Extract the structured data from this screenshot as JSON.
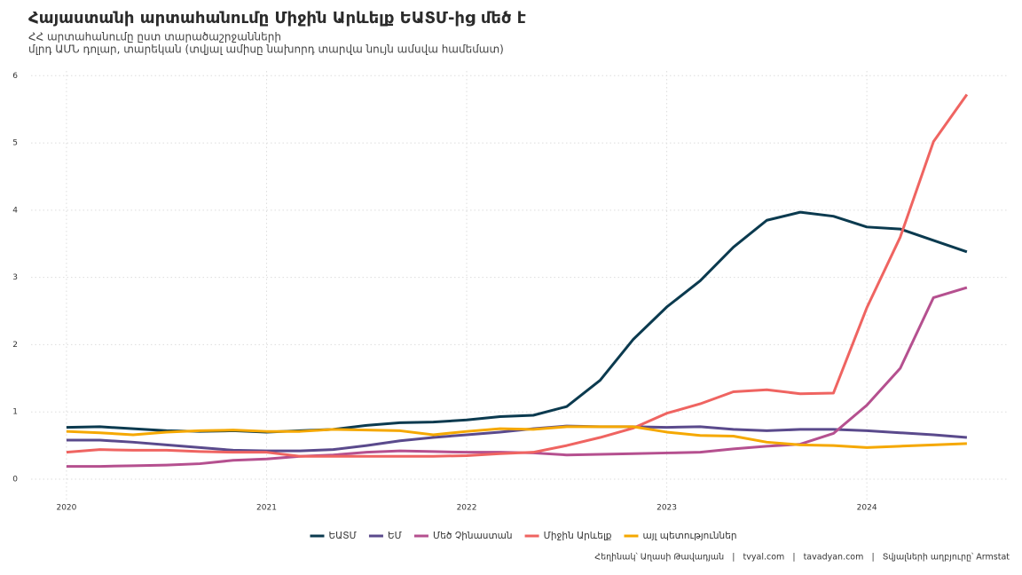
{
  "chart_data": {
    "type": "line",
    "title": "Հայաստանի արտահանումը Միջին Արևելք ԵԱՏՄ-ից մեծ է",
    "subtitle": [
      "ՀՀ արտահանումը ըստ տարածաշրջանների",
      "մլրդ ԱՄՆ դոլար, տարեկան (տվյալ ամիսը նախորդ տարվա նույն ամսվա համեմատ)"
    ],
    "caption": "Հեղինակ՝ Աղասի Թավադյան   |   tvyal.com   |   tavadyan.com   |   Տվյալների աղբյուրը՝ Armstat",
    "x": [
      2020,
      2020.167,
      2020.333,
      2020.5,
      2020.667,
      2020.833,
      2021,
      2021.167,
      2021.333,
      2021.5,
      2021.667,
      2021.833,
      2022,
      2022.167,
      2022.333,
      2022.5,
      2022.667,
      2022.833,
      2023,
      2023.167,
      2023.333,
      2023.5,
      2023.667,
      2023.833,
      2024,
      2024.167,
      2024.333,
      2024.5
    ],
    "series": [
      {
        "name": "ԵԱՏՄ",
        "color": "#0b3a4f",
        "values": [
          0.77,
          0.78,
          0.75,
          0.72,
          0.71,
          0.72,
          0.7,
          0.72,
          0.74,
          0.8,
          0.84,
          0.85,
          0.88,
          0.93,
          0.95,
          1.08,
          1.47,
          2.08,
          2.56,
          2.95,
          3.45,
          3.85,
          3.97,
          3.91,
          3.75,
          3.72,
          3.55,
          3.38
        ]
      },
      {
        "name": "ԵՄ",
        "color": "#5a4a8c",
        "values": [
          0.58,
          0.58,
          0.55,
          0.51,
          0.47,
          0.43,
          0.42,
          0.42,
          0.44,
          0.5,
          0.57,
          0.62,
          0.66,
          0.7,
          0.75,
          0.79,
          0.78,
          0.78,
          0.77,
          0.78,
          0.74,
          0.72,
          0.74,
          0.74,
          0.72,
          0.69,
          0.66,
          0.62
        ]
      },
      {
        "name": "Մեծ Չինաստան",
        "color": "#b5508f",
        "values": [
          0.19,
          0.19,
          0.2,
          0.21,
          0.23,
          0.28,
          0.3,
          0.34,
          0.36,
          0.4,
          0.42,
          0.41,
          0.4,
          0.4,
          0.39,
          0.36,
          0.37,
          0.38,
          0.39,
          0.4,
          0.45,
          0.49,
          0.52,
          0.68,
          1.1,
          1.65,
          2.7,
          2.85
        ]
      },
      {
        "name": "Միջին Արևելք",
        "color": "#ef6461",
        "values": [
          0.4,
          0.44,
          0.43,
          0.43,
          0.41,
          0.4,
          0.4,
          0.34,
          0.34,
          0.34,
          0.34,
          0.34,
          0.35,
          0.38,
          0.4,
          0.5,
          0.62,
          0.76,
          0.98,
          1.12,
          1.3,
          1.33,
          1.27,
          1.28,
          2.55,
          3.6,
          5.02,
          5.72
        ]
      },
      {
        "name": "այլ պետություններ",
        "color": "#f5a800",
        "values": [
          0.71,
          0.69,
          0.66,
          0.7,
          0.72,
          0.73,
          0.71,
          0.71,
          0.74,
          0.73,
          0.72,
          0.66,
          0.71,
          0.75,
          0.74,
          0.78,
          0.78,
          0.78,
          0.7,
          0.65,
          0.64,
          0.55,
          0.51,
          0.5,
          0.47,
          0.49,
          0.51,
          0.53
        ]
      }
    ],
    "xlim": [
      2019.823,
      2024.7
    ],
    "xticks": [
      2020,
      2021,
      2022,
      2023,
      2024
    ],
    "ylim": [
      -0.33,
      6.07
    ],
    "yticks": [
      0,
      1,
      2,
      3,
      4,
      5,
      6
    ],
    "grid": true,
    "legend": "bottom"
  }
}
